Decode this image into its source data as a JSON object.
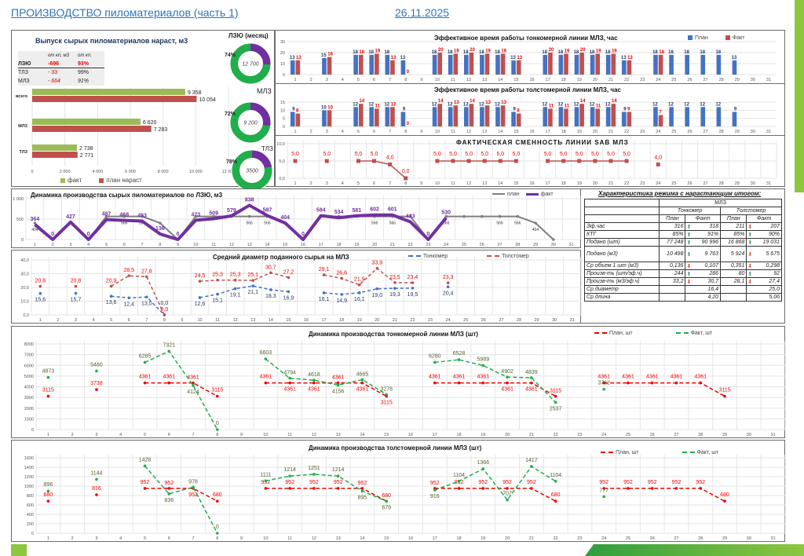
{
  "header": {
    "title": "ПРОИЗВОДСТВО пиломатериалов (часть 1)",
    "date": "26.11.2025"
  },
  "colors": {
    "plan_blue": "#4472c4",
    "fact_red": "#c0504d",
    "green": "#1fae4b",
    "purple": "#7030a0",
    "fact_green": "#9bbb59",
    "accent_lime": "#8dc63f"
  },
  "output": {
    "title": "Выпуск сырых пиломатериалов нараст, м3",
    "mini_table": {
      "headers": [
        "от кп, м3",
        "от кп."
      ],
      "rows": [
        {
          "name": "ЛЗЮ",
          "dev": "-696",
          "pct": "93%"
        },
        {
          "name": "ТЛЗ",
          "dev": "- 33",
          "pct": "99%"
        },
        {
          "name": "МЛЗ",
          "dev": "- 664",
          "pct": "91%"
        }
      ]
    },
    "bars": {
      "categories": [
        "всего",
        "МЛЗ",
        "ТЛЗ"
      ],
      "fact": [
        9358,
        6620,
        2738
      ],
      "plan": [
        10054,
        7283,
        2771
      ],
      "fact_labels": [
        "9 358",
        "6 620",
        "2 738"
      ],
      "plan_labels": [
        "10 054",
        "7 283",
        "2 771"
      ],
      "ticks": [
        "0",
        "2 000",
        "4 000",
        "6 000",
        "8 000",
        "10 000",
        "12 000"
      ],
      "xmax": 12000,
      "legend_fact": "факт",
      "legend_plan": "план нараст"
    },
    "donuts": [
      {
        "title": "ЛЗЮ (месяц)",
        "pct": 74,
        "pct_label": "74%",
        "center": "12 700"
      },
      {
        "title": "МЛЗ",
        "pct": 72,
        "pct_label": "72%",
        "center": "9 200"
      },
      {
        "title": "ТЛЗ",
        "pct": 78,
        "pct_label": "78%",
        "center": "3500"
      }
    ]
  },
  "chart_data": [
    {
      "id": "tonk_hours",
      "type": "bar",
      "title": "Эффективное время работы тонкомерной линии МЛЗ, час",
      "legend": [
        "План",
        "Факт"
      ],
      "ylim": [
        0,
        30
      ],
      "yticks": [
        0,
        10,
        20,
        30
      ],
      "series": [
        {
          "name": "План",
          "values": [
            13,
            null,
            15,
            null,
            18,
            18,
            18,
            13,
            null,
            18,
            18,
            18,
            18,
            18,
            13,
            null,
            18,
            18,
            18,
            18,
            18,
            13,
            null,
            18,
            18,
            18,
            18,
            18,
            13,
            null,
            null
          ]
        },
        {
          "name": "Факт",
          "values": [
            13,
            null,
            16,
            null,
            18,
            19,
            13,
            0,
            null,
            20,
            19,
            20,
            19,
            19,
            13,
            null,
            20,
            19,
            20,
            19,
            19,
            13,
            null,
            18,
            null,
            null,
            null,
            null,
            null,
            null,
            null
          ]
        }
      ]
    },
    {
      "id": "tolst_hours",
      "type": "bar",
      "title": "Эффективное время работы толстомерной линии МЛЗ, час",
      "ylim": [
        0,
        17
      ],
      "yticks": [
        0,
        5,
        10,
        15
      ],
      "series": [
        {
          "name": "План",
          "values": [
            9,
            null,
            10,
            null,
            12,
            12,
            12,
            9,
            null,
            12,
            12,
            12,
            12,
            12,
            9,
            null,
            12,
            12,
            12,
            12,
            12,
            9,
            null,
            12,
            12,
            12,
            12,
            12,
            9,
            null,
            null
          ]
        },
        {
          "name": "Факт",
          "values": [
            8,
            null,
            10,
            null,
            14,
            11,
            12,
            0,
            null,
            14,
            13,
            14,
            13,
            13,
            8,
            null,
            11,
            11,
            14,
            11,
            14,
            9,
            null,
            7,
            null,
            null,
            null,
            null,
            null,
            null,
            null
          ]
        }
      ]
    },
    {
      "id": "shift",
      "type": "line",
      "title": "ФАКТИЧЕСКАЯ СМЕННОСТЬ ЛИНИИ SAB МЛЗ",
      "ylim": [
        0,
        10
      ],
      "yticks": [
        0,
        5,
        10
      ],
      "decimals": 1,
      "series": [
        {
          "name": "Сменность",
          "values": [
            5,
            null,
            5,
            null,
            5,
            5,
            4,
            0,
            null,
            5,
            5,
            5,
            5,
            5,
            5,
            null,
            5,
            5,
            5,
            5,
            5,
            5,
            null,
            4,
            null,
            null,
            null,
            null,
            null,
            null,
            null
          ]
        }
      ]
    },
    {
      "id": "lzyu",
      "type": "line",
      "title": "Динамика производства сырых пиломатериалов по ЛЗЮ, м3",
      "legend": [
        "план",
        "факт"
      ],
      "ylim": [
        0,
        1000
      ],
      "yticks": [
        0,
        500,
        1000
      ],
      "ytick_labels": [
        "0",
        "500",
        "1 000"
      ],
      "series": [
        {
          "name": "план",
          "values": [
            404,
            0,
            404,
            0,
            566,
            566,
            566,
            404,
            0,
            566,
            566,
            566,
            566,
            566,
            404,
            0,
            566,
            566,
            566,
            566,
            566,
            566,
            0,
            566,
            566,
            566,
            566,
            566,
            404,
            0,
            null
          ],
          "label_days": [
            1,
            6,
            7,
            13,
            14,
            20,
            21,
            24,
            27,
            28,
            29
          ]
        },
        {
          "name": "факт",
          "values": [
            364,
            0,
            427,
            0,
            487,
            468,
            453,
            136,
            0,
            473,
            509,
            579,
            838,
            587,
            404,
            0,
            584,
            534,
            581,
            602,
            601,
            433,
            0,
            530,
            null,
            null,
            null,
            null,
            null,
            null,
            null
          ]
        }
      ]
    },
    {
      "id": "diam",
      "type": "line",
      "title": "Средний диаметр поданного сырья на МЛЗ",
      "legend": [
        "Тонкомер",
        "Толстомер"
      ],
      "ylim": [
        0,
        40
      ],
      "yticks": [
        0,
        10,
        20,
        30,
        40
      ],
      "decimals": 1,
      "series": [
        {
          "name": "Тонкомер",
          "values": [
            15.6,
            null,
            15.7,
            null,
            13.6,
            12.4,
            13.0,
            0.0,
            null,
            12.6,
            15.1,
            19.1,
            21.1,
            18.3,
            16.9,
            null,
            16.1,
            14.9,
            16.1,
            19.0,
            19.3,
            19.5,
            null,
            20.4,
            null,
            null,
            null,
            null,
            null,
            null,
            null
          ]
        },
        {
          "name": "Толстомер",
          "values": [
            20.8,
            null,
            20.8,
            null,
            20.9,
            28.5,
            27.8,
            0.0,
            null,
            24.5,
            25.3,
            25.3,
            25.1,
            30.7,
            27.2,
            null,
            29.1,
            26.6,
            21.9,
            33.9,
            23.5,
            23.4,
            null,
            23.3,
            null,
            null,
            null,
            null,
            null,
            null,
            null
          ]
        }
      ]
    },
    {
      "id": "tonk_pcs",
      "type": "line",
      "title": "Динамика производства тонкомерной линии МЛЗ (шт)",
      "legend": [
        "План, шт",
        "Факт, шт"
      ],
      "ylim": [
        0,
        8000
      ],
      "yticks": [
        0,
        1000,
        2000,
        3000,
        4000,
        5000,
        6000,
        7000,
        8000
      ],
      "series": [
        {
          "name": "План, шт",
          "values": [
            3115,
            null,
            3738,
            null,
            4361,
            4361,
            4361,
            3115,
            null,
            4361,
            4361,
            4361,
            4361,
            4361,
            3115,
            null,
            4361,
            4361,
            4361,
            4361,
            4361,
            3115,
            null,
            4361,
            4361,
            4361,
            4361,
            4361,
            3115,
            null,
            null
          ]
        },
        {
          "name": "Факт, шт",
          "values": [
            4873,
            null,
            5480,
            null,
            6285,
            7321,
            4124,
            0,
            null,
            6603,
            4794,
            4618,
            4156,
            4665,
            3278,
            null,
            6280,
            6528,
            5989,
            4902,
            4839,
            2537,
            null,
            3762,
            null,
            null,
            null,
            null,
            null,
            null,
            null
          ]
        }
      ]
    },
    {
      "id": "tolst_pcs",
      "type": "line",
      "title": "Динамика производства толстомерной линии МЛЗ (шт)",
      "legend": [
        "План, шт",
        "Факт, шт"
      ],
      "ylim": [
        0,
        1600
      ],
      "yticks": [
        0,
        200,
        400,
        600,
        800,
        1000,
        1200,
        1400,
        1600
      ],
      "series": [
        {
          "name": "План, шт",
          "values": [
            680,
            null,
            816,
            null,
            952,
            952,
            952,
            680,
            null,
            952,
            952,
            952,
            952,
            952,
            680,
            null,
            952,
            952,
            952,
            952,
            952,
            680,
            null,
            952,
            952,
            952,
            952,
            952,
            680,
            null,
            null
          ]
        },
        {
          "name": "Факт, шт",
          "values": [
            896,
            null,
            1144,
            null,
            1428,
            836,
            978,
            0,
            null,
            1111,
            1214,
            1251,
            1214,
            895,
            679,
            null,
            916,
            1104,
            1366,
            707,
            1417,
            1104,
            null,
            777,
            null,
            null,
            null,
            null,
            null,
            null,
            null
          ]
        }
      ]
    }
  ],
  "regime": {
    "title": "Характеристика режима с нарастающим итогом:",
    "unit": "МЛЗ",
    "group1": "Тонкомер",
    "group2": "Толстомер",
    "plan": "План",
    "fact": "Факт",
    "rows": [
      {
        "name": "Эф.час",
        "tp": "316",
        "ta": "up",
        "tf": "318",
        "lp": "211",
        "la": "dn",
        "lf": "207"
      },
      {
        "name": "КТГ",
        "tp": "85%",
        "ta": "up",
        "tf": "91%",
        "lp": "85%",
        "la": "up",
        "lf": "90%"
      },
      {
        "name": "Подано (шт)",
        "tp": "77 248",
        "ta": "up",
        "tf": "90 996",
        "lp": "16 868",
        "la": "up",
        "lf": "19 031"
      },
      {
        "name": "Подано (м3)",
        "tp": "10 498",
        "ta": "up",
        "tf": "9 763",
        "lp": "5 924",
        "la": "dn",
        "lf": "5 675"
      },
      {
        "name": "Ср объем 1 шт (м3)",
        "tp": "0,136",
        "ta": "dn",
        "tf": "0,107",
        "lp": "0,351",
        "la": "dn",
        "lf": "0,298"
      },
      {
        "name": "Произв-ть (шт/эф.ч)",
        "tp": "244",
        "ta": "up",
        "tf": "286",
        "lp": "80",
        "la": "up",
        "lf": "92"
      },
      {
        "name": "Произв-ть (м3/эф.ч)",
        "tp": "33,2",
        "ta": "dn",
        "tf": "30,7",
        "lp": "28,1",
        "la": "dn",
        "lf": "27,4"
      },
      {
        "name": "Ср.диаметр",
        "tp": "",
        "ta": "",
        "tf": "16,4",
        "lp": "",
        "la": "",
        "lf": "25,0"
      },
      {
        "name": "Ср.длина",
        "tp": "",
        "ta": "",
        "tf": "4,20",
        "lp": "",
        "la": "",
        "lf": "5,06"
      }
    ]
  }
}
